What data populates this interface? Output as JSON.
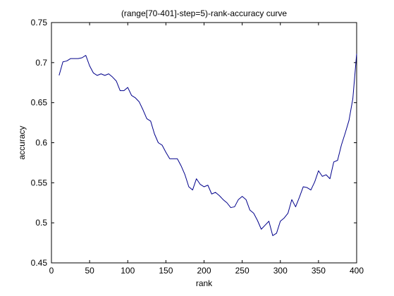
{
  "chart_data": {
    "type": "line",
    "title": "(range[70-401]-step=5)-rank-accuracy curve",
    "xlabel": "rank",
    "ylabel": "accuracy",
    "xlim": [
      0,
      400
    ],
    "ylim": [
      0.45,
      0.75
    ],
    "xticks": [
      0,
      50,
      100,
      150,
      200,
      250,
      300,
      350,
      400
    ],
    "yticks": [
      0.45,
      0.5,
      0.55,
      0.6,
      0.65,
      0.7,
      0.75
    ],
    "xtick_labels": [
      "0",
      "50",
      "100",
      "150",
      "200",
      "250",
      "300",
      "350",
      "400"
    ],
    "ytick_labels": [
      "0.45",
      "0.5",
      "0.55",
      "0.6",
      "0.65",
      "0.7",
      "0.75"
    ],
    "grid": false,
    "series": [
      {
        "color": "#00008b",
        "x": [
          10,
          15,
          20,
          25,
          30,
          35,
          40,
          45,
          50,
          55,
          60,
          65,
          70,
          75,
          80,
          85,
          90,
          95,
          100,
          105,
          110,
          115,
          120,
          125,
          130,
          135,
          140,
          145,
          150,
          155,
          160,
          165,
          170,
          175,
          180,
          185,
          190,
          195,
          200,
          205,
          210,
          215,
          220,
          225,
          230,
          235,
          240,
          245,
          250,
          255,
          260,
          265,
          270,
          275,
          280,
          285,
          290,
          295,
          300,
          305,
          310,
          315,
          320,
          325,
          330,
          335,
          340,
          345,
          350,
          355,
          360,
          365,
          370,
          375,
          380,
          385,
          390,
          395,
          400
        ],
        "y": [
          0.684,
          0.701,
          0.702,
          0.705,
          0.705,
          0.705,
          0.706,
          0.709,
          0.696,
          0.687,
          0.684,
          0.686,
          0.684,
          0.686,
          0.682,
          0.677,
          0.665,
          0.665,
          0.669,
          0.659,
          0.656,
          0.651,
          0.641,
          0.63,
          0.627,
          0.611,
          0.6,
          0.597,
          0.588,
          0.58,
          0.58,
          0.58,
          0.571,
          0.56,
          0.545,
          0.541,
          0.555,
          0.548,
          0.545,
          0.547,
          0.536,
          0.538,
          0.534,
          0.529,
          0.525,
          0.519,
          0.52,
          0.529,
          0.533,
          0.529,
          0.516,
          0.512,
          0.503,
          0.492,
          0.497,
          0.502,
          0.484,
          0.487,
          0.502,
          0.506,
          0.512,
          0.529,
          0.52,
          0.532,
          0.545,
          0.544,
          0.541,
          0.551,
          0.565,
          0.558,
          0.56,
          0.555,
          0.576,
          0.578,
          0.597,
          0.612,
          0.628,
          0.655,
          0.711
        ]
      }
    ]
  }
}
